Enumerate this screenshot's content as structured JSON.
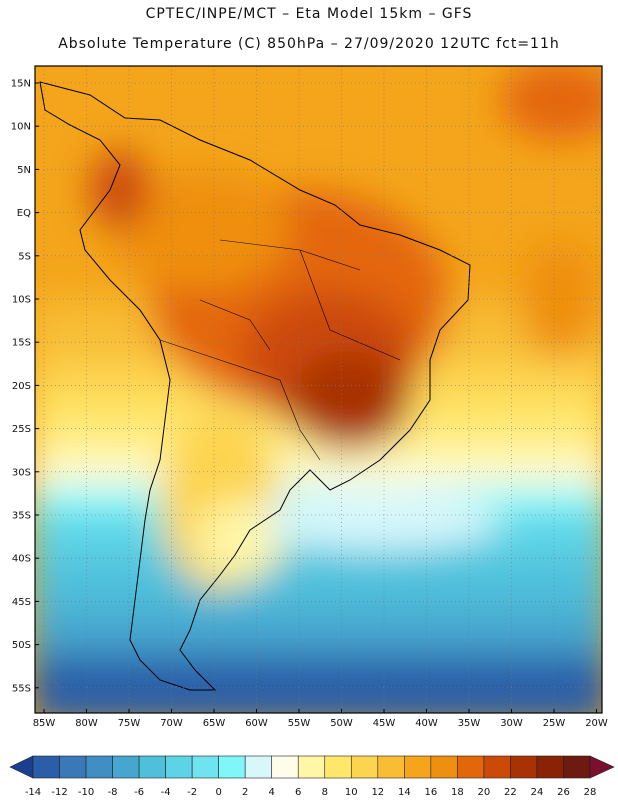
{
  "header": {
    "line1": "CPTEC/INPE/MCT –  Eta Model 15km – GFS",
    "line2": "Absolute Temperature (C) 850hPa – 27/09/2020 12UTC fct=11h"
  },
  "map": {
    "region": "South America",
    "lat_ticks": [
      "15N",
      "10N",
      "5N",
      "EQ",
      "5S",
      "10S",
      "15S",
      "20S",
      "25S",
      "30S",
      "35S",
      "40S",
      "45S",
      "50S",
      "55S"
    ],
    "lon_ticks": [
      "85W",
      "80W",
      "75W",
      "70W",
      "65W",
      "60W",
      "55W",
      "50W",
      "45W",
      "40W",
      "35W",
      "30W",
      "25W",
      "20W"
    ],
    "gridlines": true
  },
  "colorbar": {
    "labels": [
      "-14",
      "-12",
      "-10",
      "-8",
      "-6",
      "-4",
      "-2",
      "0",
      "2",
      "4",
      "6",
      "8",
      "10",
      "12",
      "14",
      "16",
      "18",
      "20",
      "22",
      "24",
      "26",
      "28"
    ],
    "colors": [
      "#1b3f8f",
      "#2a5ea8",
      "#3a78b8",
      "#3f8fc4",
      "#46a6cf",
      "#4fbfdb",
      "#5dd3e6",
      "#6fe3f0",
      "#7ff6f8",
      "#d7f7fb",
      "#fffdea",
      "#fff6a6",
      "#ffe76c",
      "#fdd44f",
      "#f8bd34",
      "#f4a51b",
      "#ef8f10",
      "#e4660b",
      "#cc4a08",
      "#a83206",
      "#8a2306",
      "#6f1a10",
      "#7a1030"
    ]
  }
}
